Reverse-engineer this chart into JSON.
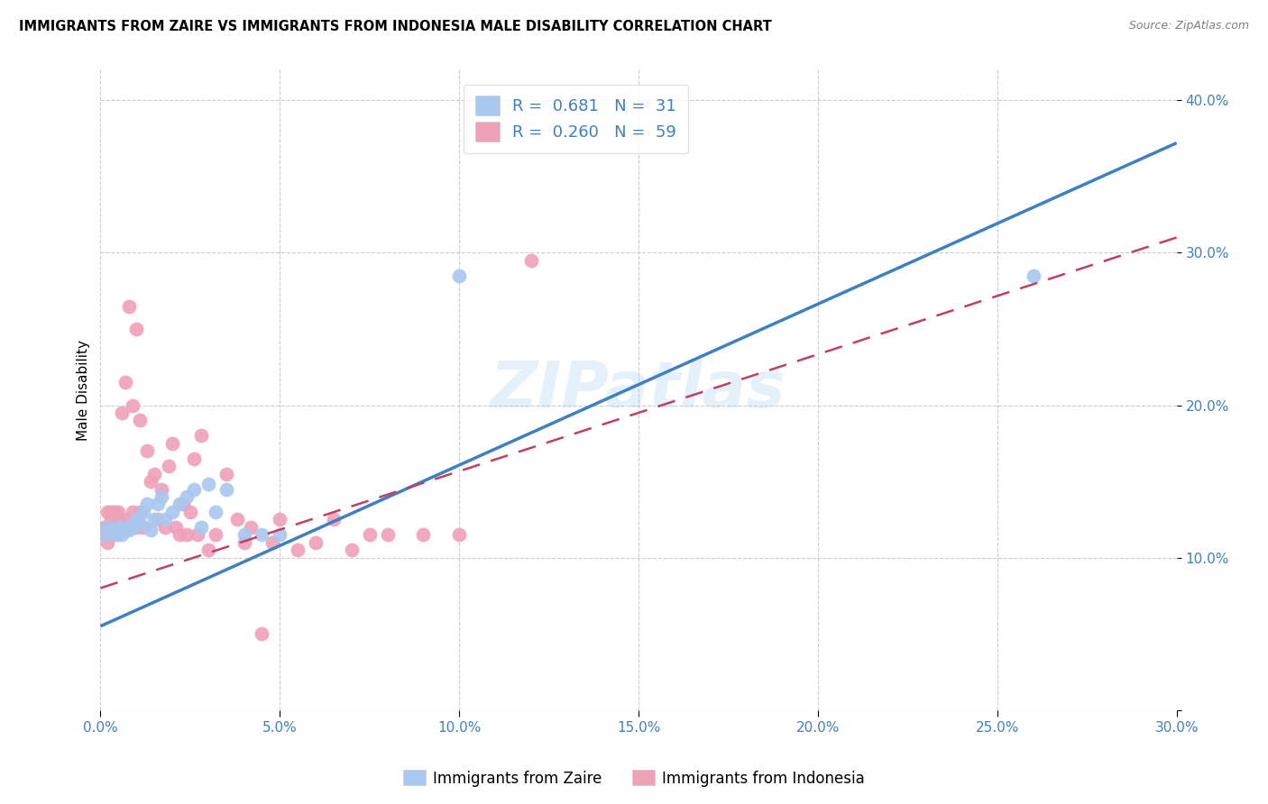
{
  "title": "IMMIGRANTS FROM ZAIRE VS IMMIGRANTS FROM INDONESIA MALE DISABILITY CORRELATION CHART",
  "source": "Source: ZipAtlas.com",
  "ylabel": "Male Disability",
  "xlim": [
    0.0,
    0.3
  ],
  "ylim": [
    0.0,
    0.42
  ],
  "x_ticks": [
    0.0,
    0.05,
    0.1,
    0.15,
    0.2,
    0.25,
    0.3
  ],
  "y_ticks": [
    0.0,
    0.1,
    0.2,
    0.3,
    0.4
  ],
  "x_tick_labels": [
    "0.0%",
    "5.0%",
    "10.0%",
    "15.0%",
    "20.0%",
    "25.0%",
    "30.0%"
  ],
  "y_tick_labels": [
    "",
    "10.0%",
    "20.0%",
    "30.0%",
    "40.0%"
  ],
  "zaire_color": "#A8C8F0",
  "indonesia_color": "#F0A0B8",
  "zaire_line_color": "#4080C0",
  "indonesia_line_color": "#C04060",
  "background_color": "#FFFFFF",
  "grid_color": "#CCCCCC",
  "zaire_x": [
    0.001,
    0.002,
    0.003,
    0.004,
    0.005,
    0.006,
    0.007,
    0.008,
    0.009,
    0.01,
    0.011,
    0.012,
    0.013,
    0.014,
    0.015,
    0.016,
    0.017,
    0.018,
    0.02,
    0.022,
    0.024,
    0.026,
    0.028,
    0.03,
    0.032,
    0.035,
    0.04,
    0.045,
    0.05,
    0.26,
    0.1
  ],
  "zaire_y": [
    0.115,
    0.12,
    0.118,
    0.115,
    0.12,
    0.115,
    0.12,
    0.118,
    0.12,
    0.125,
    0.122,
    0.13,
    0.135,
    0.118,
    0.125,
    0.135,
    0.14,
    0.125,
    0.13,
    0.135,
    0.14,
    0.145,
    0.12,
    0.148,
    0.13,
    0.145,
    0.115,
    0.115,
    0.115,
    0.285,
    0.285
  ],
  "indonesia_x": [
    0.001,
    0.001,
    0.002,
    0.002,
    0.002,
    0.003,
    0.003,
    0.004,
    0.004,
    0.005,
    0.005,
    0.005,
    0.006,
    0.006,
    0.007,
    0.007,
    0.008,
    0.008,
    0.009,
    0.009,
    0.01,
    0.01,
    0.011,
    0.011,
    0.012,
    0.013,
    0.014,
    0.015,
    0.016,
    0.017,
    0.018,
    0.019,
    0.02,
    0.021,
    0.022,
    0.023,
    0.024,
    0.025,
    0.026,
    0.027,
    0.028,
    0.03,
    0.032,
    0.035,
    0.038,
    0.04,
    0.042,
    0.045,
    0.048,
    0.05,
    0.055,
    0.06,
    0.065,
    0.07,
    0.075,
    0.08,
    0.09,
    0.1,
    0.12
  ],
  "indonesia_y": [
    0.12,
    0.115,
    0.12,
    0.13,
    0.11,
    0.125,
    0.13,
    0.12,
    0.13,
    0.115,
    0.125,
    0.13,
    0.12,
    0.195,
    0.12,
    0.215,
    0.125,
    0.265,
    0.13,
    0.2,
    0.12,
    0.25,
    0.13,
    0.19,
    0.12,
    0.17,
    0.15,
    0.155,
    0.125,
    0.145,
    0.12,
    0.16,
    0.175,
    0.12,
    0.115,
    0.135,
    0.115,
    0.13,
    0.165,
    0.115,
    0.18,
    0.105,
    0.115,
    0.155,
    0.125,
    0.11,
    0.12,
    0.05,
    0.11,
    0.125,
    0.105,
    0.11,
    0.125,
    0.105,
    0.115,
    0.115,
    0.115,
    0.115,
    0.295
  ],
  "watermark": "ZIPatlas",
  "zaire_line_x": [
    0.0,
    0.3
  ],
  "zaire_line_y": [
    0.055,
    0.372
  ],
  "indonesia_line_x": [
    0.0,
    0.3
  ],
  "indonesia_line_y": [
    0.08,
    0.31
  ],
  "legend_zaire_label": "R =  0.681   N =  31",
  "legend_indonesia_label": "R =  0.260   N =  59",
  "legend_text_color": "#4080C0"
}
